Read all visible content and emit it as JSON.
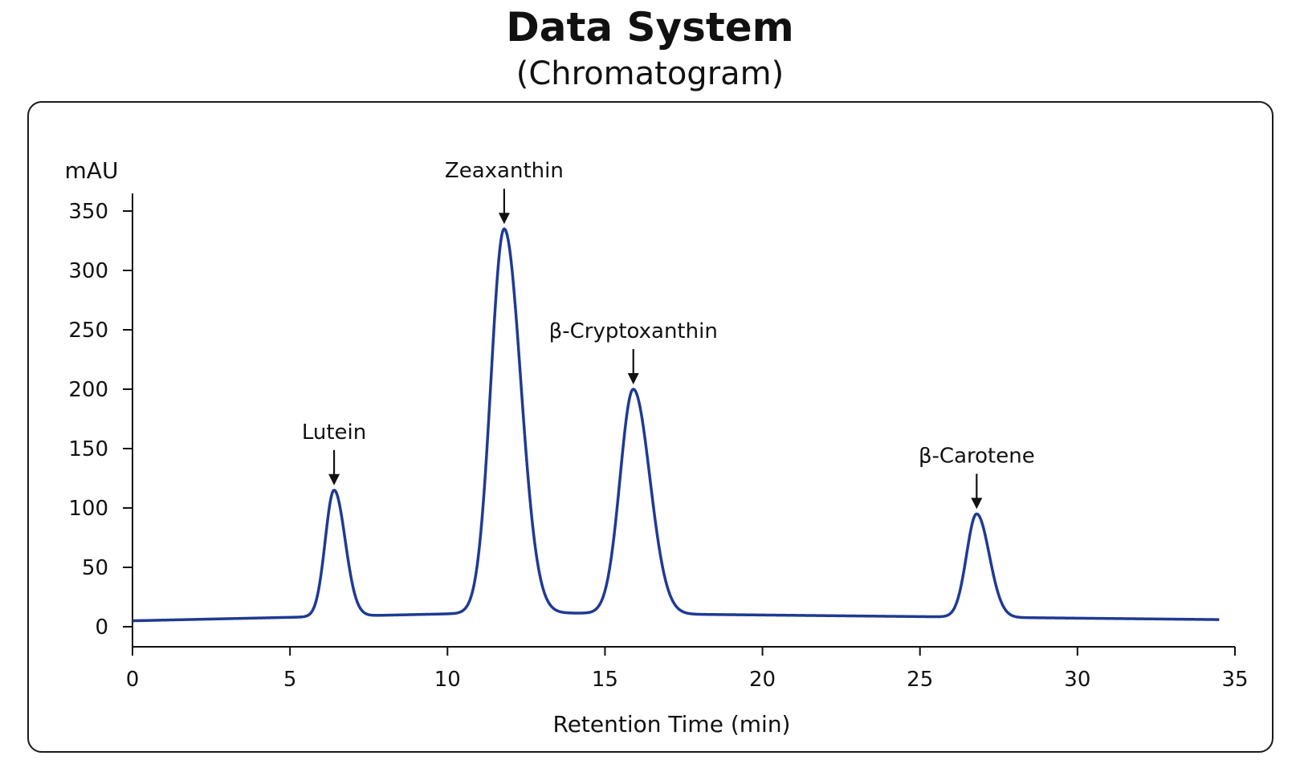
{
  "header": {
    "title": "Data System",
    "subtitle": "(Chromatogram)"
  },
  "chart_data": {
    "type": "line",
    "title": "Data System",
    "subtitle": "(Chromatogram)",
    "xlabel": "Retention Time (min)",
    "ylabel": "mAU",
    "xlim": [
      0,
      35
    ],
    "ylim": [
      0,
      350
    ],
    "x_ticks": [
      0,
      5,
      10,
      15,
      20,
      25,
      30,
      35
    ],
    "y_ticks": [
      0,
      50,
      100,
      150,
      200,
      250,
      300,
      350
    ],
    "grid": false,
    "line_color": "#1f3a93",
    "baseline": {
      "start_time": 0,
      "start_value": 5,
      "peak_value": 12,
      "end_time": 34.5,
      "end_value": 6
    },
    "peaks": [
      {
        "name": "Lutein",
        "time": 6.4,
        "height": 115,
        "width": 0.28
      },
      {
        "name": "Zeaxanthin",
        "time": 11.8,
        "height": 335,
        "width": 0.42
      },
      {
        "name": "β-Cryptoxanthin",
        "time": 15.9,
        "height": 200,
        "width": 0.42
      },
      {
        "name": "β-Carotene",
        "time": 26.8,
        "height": 95,
        "width": 0.32
      }
    ]
  }
}
